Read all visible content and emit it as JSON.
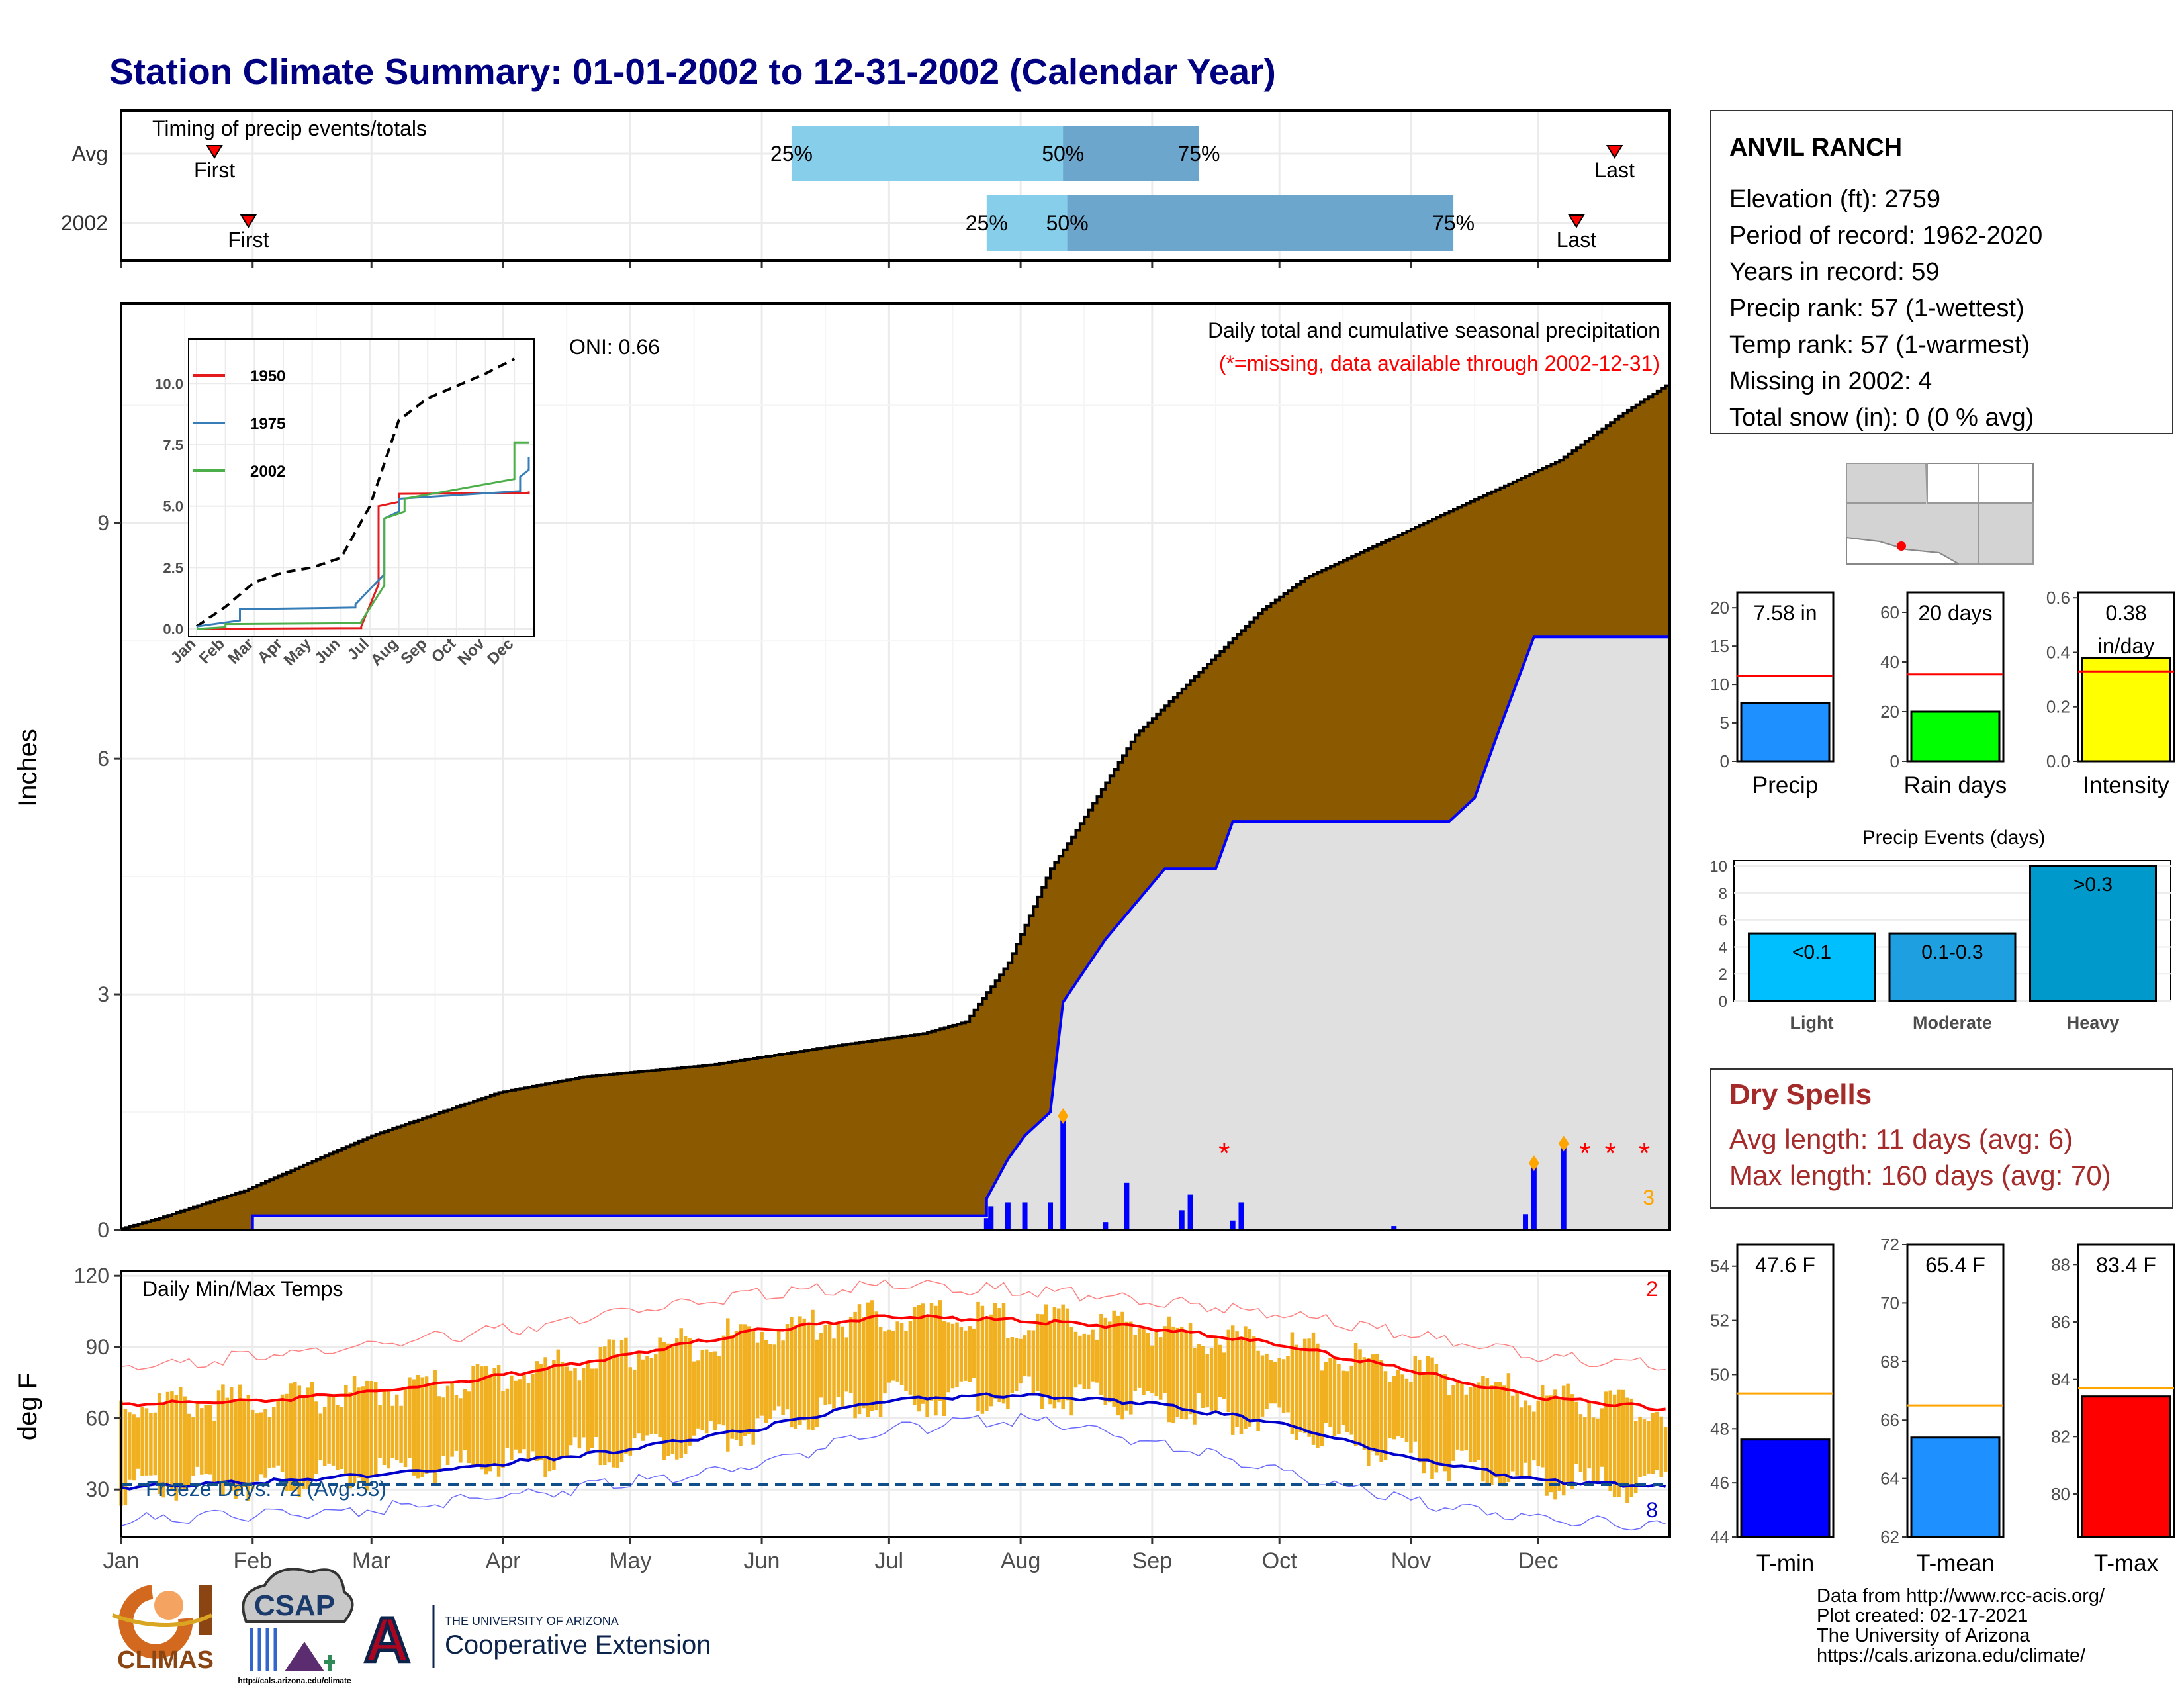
{
  "page": {
    "title": "Station Climate Summary: 01-01-2002 to 12-31-2002 (Calendar Year)",
    "title_color": "#000080"
  },
  "colors": {
    "cum_fill": "#8B5A00",
    "cum_normal_fill": "#E0E0E0",
    "blue_line": "#0000FF",
    "tmax_line": "#FF0000",
    "tmin_line": "#0000CC",
    "range_bars": "#F0B020",
    "orange": "#FFA500",
    "missing": "#FF0000",
    "timing_light": "#87CEEB",
    "timing_dark": "#6CA6CD",
    "dry_text": "#A52A2A"
  },
  "timing": {
    "label": "Timing of precip events/totals",
    "rows": [
      {
        "name": "Avg",
        "first_doy": 22,
        "p25_doy": 158,
        "p50_doy": 222,
        "p75_doy": 254,
        "last_doy": 352
      },
      {
        "name": "2002",
        "first_doy": 30,
        "p25_doy": 204,
        "p50_doy": 223,
        "p75_doy": 314,
        "last_doy": 343
      }
    ],
    "first_label": "First",
    "last_label": "Last",
    "pct_labels": [
      "25%",
      "50%",
      "75%"
    ]
  },
  "station": {
    "name": "ANVIL RANCH",
    "lines": [
      "Elevation (ft): 2759",
      "Period of record: 1962-2020",
      "Years in record: 59",
      "Precip rank: 57 (1-wettest)",
      "Temp rank: 57 (1-warmest)",
      "Missing in 2002: 4",
      "Total snow (in): 0 (0 % avg)"
    ]
  },
  "precip_panel": {
    "title": "Daily total and cumulative seasonal precipitation",
    "subtitle": "(*=missing, data available through 2002-12-31)",
    "oni": "ONI: 0.66",
    "ylabel": "Inches",
    "yticks": [
      0,
      3,
      6,
      9
    ],
    "ylim": [
      0,
      11.8
    ],
    "corner_count": "3"
  },
  "inset": {
    "yticks": [
      "0.0",
      "2.5",
      "5.0",
      "7.5",
      "10.0"
    ],
    "legend": [
      {
        "name": "1950",
        "color": "#E41A1C"
      },
      {
        "name": "1975",
        "color": "#377EB8"
      },
      {
        "name": "2002",
        "color": "#4DAF4A"
      }
    ]
  },
  "temp_panel": {
    "title": "Daily Min/Max Temps",
    "ylabel": "deg F",
    "yticks": [
      30,
      60,
      90,
      120
    ],
    "freeze_label": "Freeze Days: 72 (Avg:53)",
    "top_count": "2",
    "bottom_count": "8"
  },
  "months": [
    "Jan",
    "Feb",
    "Mar",
    "Apr",
    "May",
    "Jun",
    "Jul",
    "Aug",
    "Sep",
    "Oct",
    "Nov",
    "Dec"
  ],
  "bar_panels": [
    {
      "value_label": "7.58 in",
      "axis_label": "Precip",
      "value": 7.58,
      "avg": 11.1,
      "ylim": [
        0,
        22
      ],
      "yticks": [
        0,
        5,
        10,
        15,
        20
      ],
      "color": "#1E90FF"
    },
    {
      "value_label": "20 days",
      "axis_label": "Rain days",
      "value": 20,
      "avg": 35,
      "ylim": [
        0,
        68
      ],
      "yticks": [
        0,
        20,
        40,
        60
      ],
      "color": "#00FF00"
    },
    {
      "value_label": "0.38",
      "value_label2": "in/day",
      "axis_label": "Intensity",
      "value": 0.38,
      "avg": 0.33,
      "ylim": [
        0,
        0.62
      ],
      "yticks": [
        "0.0",
        "0.2",
        "0.4",
        "0.6"
      ],
      "color": "#FFFF00"
    }
  ],
  "events": {
    "title": "Precip Events (days)",
    "yticks": [
      0,
      2,
      4,
      6,
      8,
      10
    ],
    "bars": [
      {
        "cat": "Light",
        "label": "<0.1",
        "value": 5,
        "color": "#00BFFF"
      },
      {
        "cat": "Moderate",
        "label": "0.1-0.3",
        "value": 5,
        "color": "#1EA0E0"
      },
      {
        "cat": "Heavy",
        "label": ">0.3",
        "value": 10,
        "color": "#0099CC"
      }
    ]
  },
  "dry": {
    "title": "Dry Spells",
    "line1": "Avg length: 11 days (avg: 6)",
    "line2": "Max length: 160 days (avg: 70)"
  },
  "temp_bars": [
    {
      "value_label": "47.6 F",
      "axis_label": "T-min",
      "value": 47.6,
      "avg": 49.3,
      "ylim": [
        44,
        54.8
      ],
      "yticks": [
        44,
        46,
        48,
        50,
        52,
        54
      ],
      "color": "#0000FF"
    },
    {
      "value_label": "65.4 F",
      "axis_label": "T-mean",
      "value": 65.4,
      "avg": 66.5,
      "ylim": [
        62,
        72
      ],
      "yticks": [
        62,
        64,
        66,
        68,
        70,
        72
      ],
      "color": "#1E90FF"
    },
    {
      "value_label": "83.4 F",
      "axis_label": "T-max",
      "value": 83.4,
      "avg": 83.7,
      "ylim": [
        78.5,
        88.7
      ],
      "yticks": [
        80,
        82,
        84,
        86,
        88
      ],
      "color": "#FF0000"
    }
  ],
  "logos": {
    "climas": "CLIMAS",
    "csap": "CSAP",
    "csap_url": "http://cals.arizona.edu/climate",
    "ua_letter": "A",
    "ua_line1": "THE UNIVERSITY OF ARIZONA",
    "ua_line2": "Cooperative Extension"
  },
  "footer": [
    "Data from http://www.rcc-acis.org/",
    "Plot created: 02-17-2021",
    "The University of Arizona",
    "https://cals.arizona.edu/climate/"
  ],
  "chart_data": [
    {
      "type": "area",
      "title": "Daily total and cumulative seasonal precipitation",
      "ylabel": "Inches",
      "ylim": [
        0,
        11.8
      ],
      "series": [
        {
          "name": "",
          "points": [
            [
              0,
              0
            ],
            [
              10,
              0.15
            ],
            [
              30,
              0.5
            ],
            [
              60,
              1.2
            ],
            [
              90,
              1.75
            ],
            [
              110,
              1.95
            ],
            [
              140,
              2.1
            ],
            [
              170,
              2.35
            ],
            [
              190,
              2.5
            ],
            [
              200,
              2.65
            ],
            [
              210,
              3.4
            ],
            [
              220,
              4.6
            ],
            [
              225,
              5.0
            ],
            [
              240,
              6.3
            ],
            [
              255,
              7.1
            ],
            [
              270,
              7.9
            ],
            [
              280,
              8.3
            ],
            [
              300,
              8.8
            ],
            [
              320,
              9.3
            ],
            [
              340,
              9.8
            ],
            [
              355,
              10.4
            ],
            [
              365,
              10.75
            ]
          ]
        },
        {
          "name": "",
          "points": [
            [
              0,
              0
            ],
            [
              31,
              0
            ],
            [
              31,
              0.18
            ],
            [
              204,
              0.18
            ],
            [
              204,
              0.4
            ],
            [
              209,
              0.9
            ],
            [
              213,
              1.2
            ],
            [
              219,
              1.5
            ],
            [
              222,
              2.9
            ],
            [
              232,
              3.7
            ],
            [
              246,
              4.6
            ],
            [
              258,
              4.6
            ],
            [
              262,
              5.2
            ],
            [
              313,
              5.2
            ],
            [
              319,
              5.5
            ],
            [
              325,
              6.4
            ],
            [
              333,
              7.55
            ],
            [
              365,
              7.55
            ]
          ]
        }
      ],
      "daily_bars": [
        [
          204,
          0.15
        ],
        [
          205,
          0.3
        ],
        [
          209,
          0.35
        ],
        [
          213,
          0.35
        ],
        [
          219,
          0.35
        ],
        [
          222,
          1.45
        ],
        [
          232,
          0.1
        ],
        [
          237,
          0.6
        ],
        [
          250,
          0.25
        ],
        [
          252,
          0.45
        ],
        [
          262,
          0.12
        ],
        [
          264,
          0.35
        ],
        [
          300,
          0.05
        ],
        [
          331,
          0.2
        ],
        [
          333,
          0.85
        ],
        [
          340,
          1.1
        ]
      ],
      "missing_days": [
        260,
        345,
        351,
        359
      ]
    },
    {
      "type": "line",
      "title": "",
      "x_labels": [
        "Jan",
        "Feb",
        "Mar",
        "Apr",
        "May",
        "Jun",
        "Jul",
        "Aug",
        "Sep",
        "Oct",
        "Nov",
        "Dec"
      ],
      "yticks": [
        0.0,
        2.5,
        5.0,
        7.5,
        10.0
      ],
      "series": [
        {
          "name": "",
          "x": [
            0,
            1,
            2,
            3,
            4,
            5,
            6,
            7,
            8,
            9,
            10,
            11
          ],
          "values": [
            0.1,
            0.9,
            1.9,
            2.3,
            2.5,
            2.9,
            5.0,
            8.5,
            9.4,
            9.9,
            10.4,
            11.0
          ]
        },
        {
          "name": "1950",
          "x": [
            0,
            5.7,
            6.3,
            7,
            11.5
          ],
          "values": [
            0,
            0.1,
            5.0,
            5.5,
            5.6
          ]
        },
        {
          "name": "1975",
          "x": [
            0,
            1.5,
            5.5,
            6.5,
            7,
            11.2,
            11.5
          ],
          "values": [
            0.1,
            0.8,
            1.0,
            4.5,
            5.3,
            6.2,
            7.0
          ]
        },
        {
          "name": "2002",
          "x": [
            0,
            1,
            5.7,
            6.5,
            7.2,
            11.0,
            11.5
          ],
          "values": [
            0,
            0.2,
            0.3,
            4.5,
            5.3,
            7.6,
            7.6
          ]
        }
      ]
    },
    {
      "type": "line",
      "title": "Daily Min/Max Temps",
      "ylabel": "deg F",
      "ylim": [
        10,
        122
      ],
      "series": [
        {
          "name": "",
          "x": [
            0,
            31,
            59,
            90,
            120,
            151,
            181,
            212,
            243,
            273,
            304,
            334,
            365
          ],
          "values": [
            66,
            67,
            71,
            78,
            87,
            97,
            103,
            101,
            98,
            91,
            80,
            69,
            64
          ]
        },
        {
          "name": "",
          "x": [
            0,
            31,
            59,
            90,
            120,
            151,
            181,
            212,
            243,
            273,
            304,
            334,
            365
          ],
          "values": [
            31,
            33,
            36,
            41,
            47,
            56,
            68,
            70,
            66,
            58,
            43,
            34,
            31
          ]
        },
        {
          "name": "",
          "x": [
            0,
            31,
            59,
            90,
            120,
            151,
            181,
            212,
            243,
            273,
            304,
            334,
            365
          ],
          "values": [
            81,
            86,
            91,
            97,
            105,
            112,
            116,
            114,
            110,
            104,
            95,
            86,
            82
          ]
        },
        {
          "name": "",
          "x": [
            0,
            31,
            59,
            90,
            120,
            151,
            181,
            212,
            243,
            273,
            304,
            334,
            365
          ],
          "values": [
            17,
            19,
            22,
            27,
            33,
            41,
            55,
            60,
            50,
            38,
            25,
            18,
            15
          ]
        }
      ],
      "freeze_line": 32
    }
  ]
}
